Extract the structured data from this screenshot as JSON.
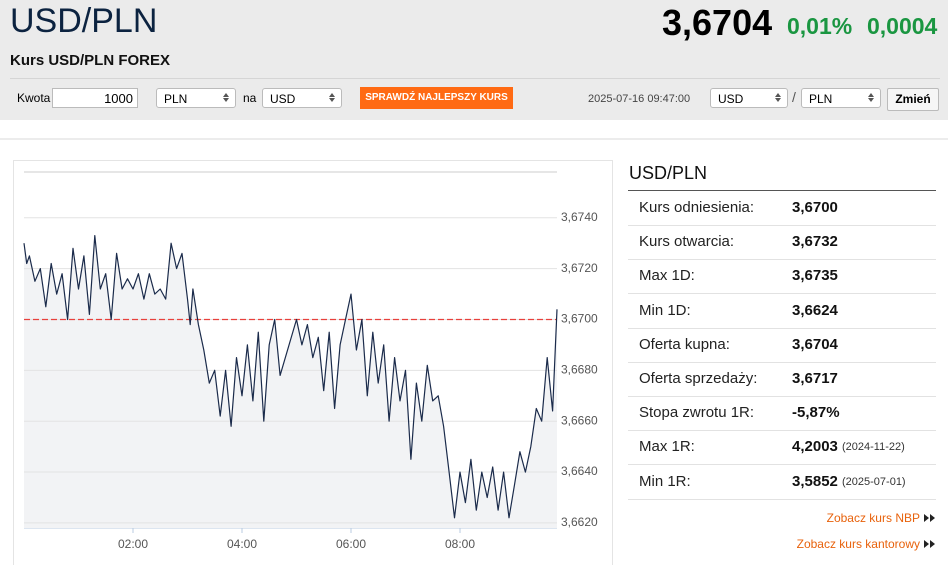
{
  "header": {
    "title": "USD/PLN",
    "subtitle": "Kurs USD/PLN FOREX",
    "price": "3,6704",
    "change_pct": "0,01%",
    "change_abs": "0,0004"
  },
  "converter": {
    "amount_label": "Kwota",
    "amount": "1000",
    "from": "PLN",
    "to_label": "na",
    "to": "USD",
    "button": "SPRAWDŹ NAJLEPSZY KURS",
    "timestamp": "2025-07-16 09:47:00",
    "pair_base": "USD",
    "separator": "/",
    "pair_quote": "PLN",
    "change_button": "Zmień"
  },
  "chart_data": {
    "type": "line",
    "color": "#1b2b4b",
    "area_color": "#f2f3f5",
    "reference_line": 3.67,
    "reference_color": "#e8413c",
    "grid": true,
    "xlim": [
      0,
      9.78
    ],
    "xticks": [
      {
        "value": 2,
        "label": "02:00"
      },
      {
        "value": 4,
        "label": "04:00"
      },
      {
        "value": 6,
        "label": "06:00"
      },
      {
        "value": 8,
        "label": "08:00"
      }
    ],
    "ylim": [
      3.6618,
      3.6758
    ],
    "yticks": [
      {
        "value": 3.662,
        "label": "3,6620"
      },
      {
        "value": 3.664,
        "label": "3,6640"
      },
      {
        "value": 3.666,
        "label": "3,6660"
      },
      {
        "value": 3.668,
        "label": "3,6680"
      },
      {
        "value": 3.67,
        "label": "3,6700"
      },
      {
        "value": 3.672,
        "label": "3,6720"
      },
      {
        "value": 3.674,
        "label": "3,6740"
      }
    ],
    "x": [
      0,
      0.05,
      0.1,
      0.2,
      0.3,
      0.4,
      0.5,
      0.6,
      0.7,
      0.8,
      0.9,
      1.0,
      1.1,
      1.2,
      1.3,
      1.4,
      1.5,
      1.6,
      1.7,
      1.8,
      1.9,
      2.0,
      2.1,
      2.2,
      2.3,
      2.4,
      2.5,
      2.6,
      2.7,
      2.8,
      2.9,
      3.0,
      3.05,
      3.1,
      3.2,
      3.3,
      3.4,
      3.5,
      3.6,
      3.7,
      3.8,
      3.9,
      4.0,
      4.1,
      4.2,
      4.3,
      4.4,
      4.5,
      4.6,
      4.7,
      5.0,
      5.1,
      5.2,
      5.3,
      5.4,
      5.5,
      5.6,
      5.7,
      5.8,
      5.9,
      6.0,
      6.1,
      6.2,
      6.3,
      6.4,
      6.5,
      6.6,
      6.7,
      6.8,
      6.9,
      7.0,
      7.1,
      7.2,
      7.3,
      7.4,
      7.5,
      7.6,
      7.7,
      7.8,
      7.9,
      8.0,
      8.1,
      8.2,
      8.3,
      8.4,
      8.5,
      8.6,
      8.7,
      8.8,
      8.9,
      9.0,
      9.1,
      9.2,
      9.3,
      9.4,
      9.5,
      9.6,
      9.7,
      9.78
    ],
    "values": [
      3.673,
      3.6722,
      3.6725,
      3.6715,
      3.672,
      3.6705,
      3.6722,
      3.671,
      3.6718,
      3.67,
      3.6728,
      3.6712,
      3.6725,
      3.6702,
      3.6733,
      3.6712,
      3.6718,
      3.67,
      3.6726,
      3.6712,
      3.6716,
      3.6712,
      3.6718,
      3.6708,
      3.6718,
      3.671,
      3.6712,
      3.6708,
      3.673,
      3.672,
      3.6726,
      3.6708,
      3.6698,
      3.6712,
      3.6698,
      3.6688,
      3.6675,
      3.668,
      3.6662,
      3.668,
      3.6658,
      3.6685,
      3.667,
      3.669,
      3.6668,
      3.6695,
      3.666,
      3.669,
      3.67,
      3.6678,
      3.67,
      3.669,
      3.6698,
      3.6685,
      3.6693,
      3.6672,
      3.6695,
      3.6665,
      3.669,
      3.67,
      3.671,
      3.6688,
      3.67,
      3.667,
      3.6695,
      3.6675,
      3.669,
      3.666,
      3.6685,
      3.6668,
      3.668,
      3.6645,
      3.6675,
      3.666,
      3.6682,
      3.6668,
      3.667,
      3.6658,
      3.664,
      3.6622,
      3.664,
      3.6628,
      3.6645,
      3.6625,
      3.664,
      3.663,
      3.6642,
      3.6625,
      3.664,
      3.6622,
      3.6635,
      3.6648,
      3.664,
      3.665,
      3.6665,
      3.666,
      3.6685,
      3.6664,
      3.6704
    ]
  },
  "stats": {
    "title": "USD/PLN",
    "rows": [
      [
        "Kurs odniesienia:",
        "3,6700"
      ],
      [
        "Kurs otwarcia:",
        "3,6732"
      ],
      [
        "Max 1D:",
        "3,6735"
      ],
      [
        "Min 1D:",
        "3,6624"
      ],
      [
        "Oferta kupna:",
        "3,6704"
      ],
      [
        "Oferta sprzedaży:",
        "3,6717"
      ],
      [
        "Stopa zwrotu 1R:",
        "-5,87%"
      ],
      [
        "Max 1R:",
        "4,2003",
        "(2024-11-22)"
      ],
      [
        "Min 1R:",
        "3,5852",
        "(2025-07-01)"
      ]
    ]
  },
  "links": [
    "Zobacz kurs NBP",
    "Zobacz kurs kantorowy"
  ]
}
